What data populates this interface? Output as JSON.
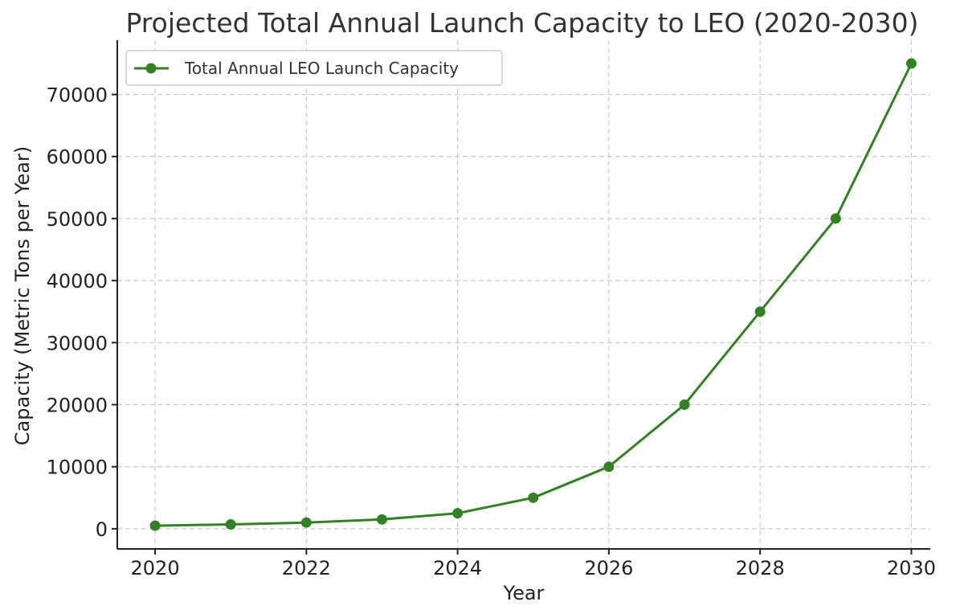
{
  "chart_data": {
    "type": "line",
    "title": "Projected Total Annual Launch Capacity to LEO (2020-2030)",
    "xlabel": "Year",
    "ylabel": "Capacity (Metric Tons per Year)",
    "xlim": [
      2019.5,
      2030.25
    ],
    "ylim": [
      -3250,
      78750
    ],
    "xticks": [
      2020,
      2022,
      2024,
      2026,
      2028,
      2030
    ],
    "yticks": [
      0,
      10000,
      20000,
      30000,
      40000,
      50000,
      60000,
      70000
    ],
    "grid": true,
    "legend_position": "top-left",
    "series": [
      {
        "name": "Total Annual LEO Launch Capacity",
        "color": "#338025",
        "marker": "circle",
        "x": [
          2020,
          2021,
          2022,
          2023,
          2024,
          2025,
          2026,
          2027,
          2028,
          2029,
          2030
        ],
        "values": [
          500,
          700,
          1000,
          1500,
          2500,
          5000,
          10000,
          20000,
          35000,
          50000,
          75000
        ]
      }
    ]
  }
}
